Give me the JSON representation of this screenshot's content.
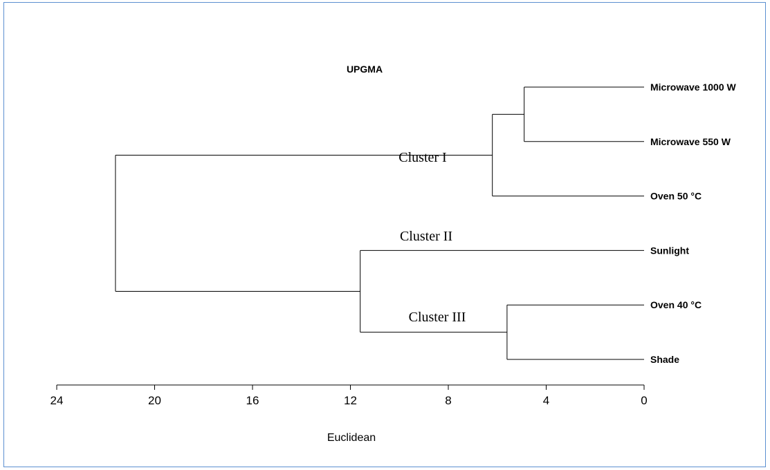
{
  "chart_data": {
    "type": "dendrogram",
    "title": "UPGMA",
    "xlabel": "Euclidean",
    "xlim": [
      24,
      0
    ],
    "ticks": [
      {
        "value": 24,
        "label": "24"
      },
      {
        "value": 20,
        "label": "20"
      },
      {
        "value": 16,
        "label": "16"
      },
      {
        "value": 12,
        "label": "12"
      },
      {
        "value": 8,
        "label": "8"
      },
      {
        "value": 4,
        "label": "4"
      },
      {
        "value": 0,
        "label": "0"
      }
    ],
    "leaves": [
      {
        "id": "mw1000",
        "label": "Microwave 1000 W"
      },
      {
        "id": "mw550",
        "label": "Microwave 550 W"
      },
      {
        "id": "oven50",
        "label": "Oven 50 °C"
      },
      {
        "id": "sun",
        "label": "Sunlight"
      },
      {
        "id": "oven40",
        "label": "Oven 40 °C"
      },
      {
        "id": "shade",
        "label": "Shade"
      }
    ],
    "merges": [
      {
        "id": "m1",
        "children": [
          "mw1000",
          "mw550"
        ],
        "height": 4.9
      },
      {
        "id": "m2",
        "children": [
          "m1",
          "oven50"
        ],
        "height": 6.2
      },
      {
        "id": "m3",
        "children": [
          "oven40",
          "shade"
        ],
        "height": 5.6
      },
      {
        "id": "m4",
        "children": [
          "sun",
          "m3"
        ],
        "height": 11.6
      },
      {
        "id": "m5",
        "children": [
          "m2",
          "m4"
        ],
        "height": 21.6
      }
    ],
    "annotations": [
      {
        "text": "Cluster I",
        "node": "m2"
      },
      {
        "text": "Cluster II",
        "node": "sun"
      },
      {
        "text": "Cluster III",
        "node": "m3"
      }
    ]
  }
}
